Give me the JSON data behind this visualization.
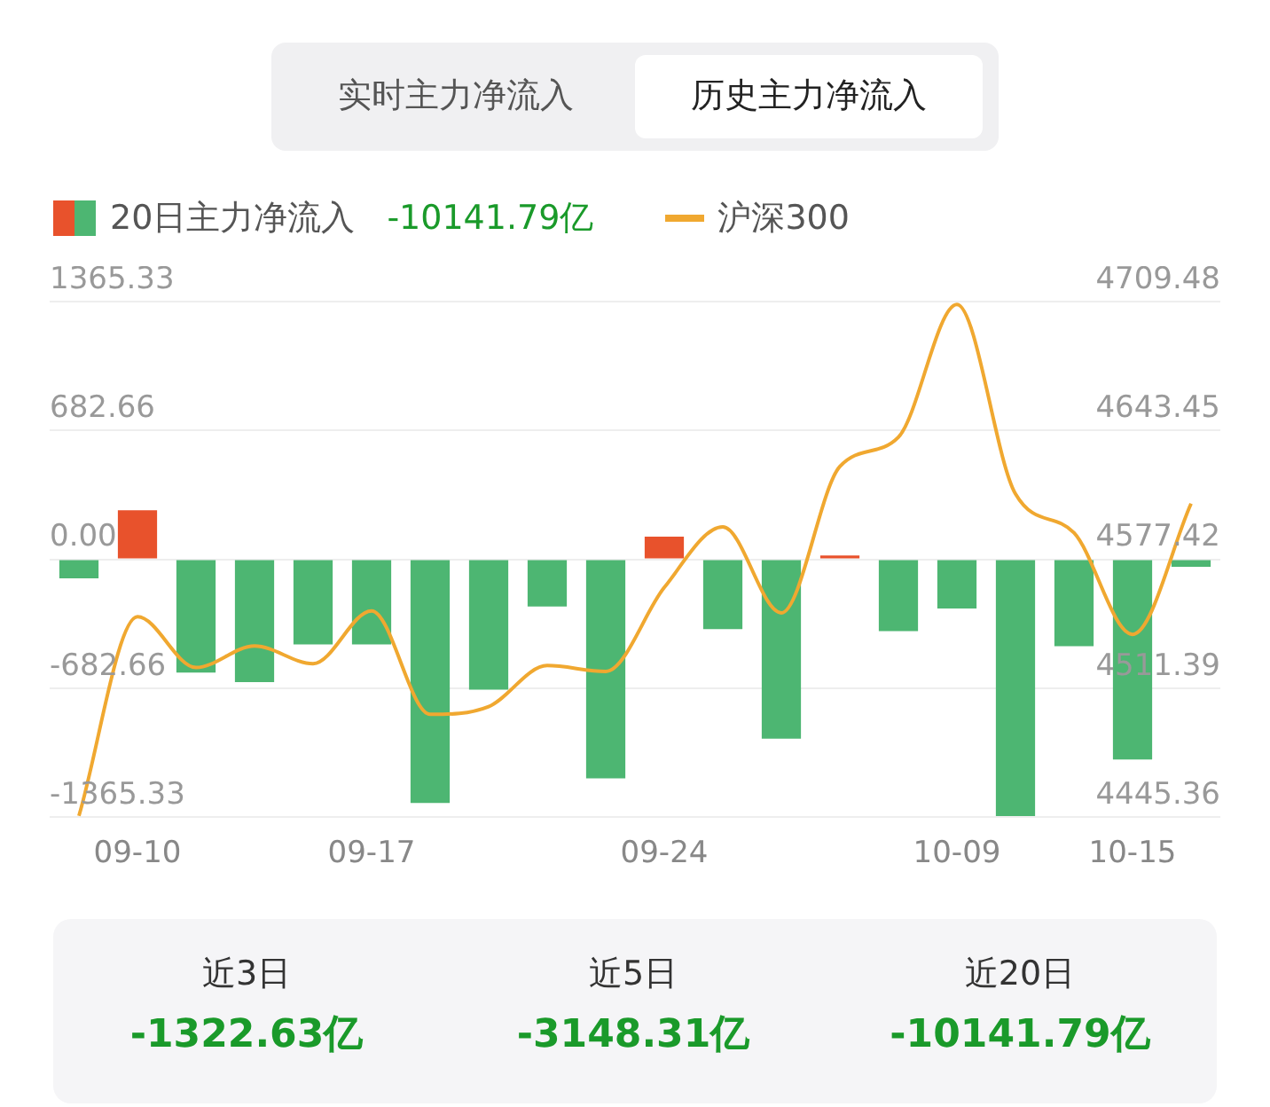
{
  "chart_data": {
    "type": "bar",
    "categories": [
      null,
      "09-10",
      null,
      null,
      null,
      "09-17",
      null,
      null,
      null,
      null,
      "09-24",
      null,
      null,
      null,
      null,
      "10-09",
      null,
      null,
      "10-15",
      null
    ],
    "series": [
      {
        "name": "20日主力净流入",
        "colors": [
          "#4db672",
          "#e8522c",
          "#4db672",
          "#4db672",
          "#4db672",
          "#4db672",
          "#4db672",
          "#4db672",
          "#4db672",
          "#4db672",
          "#e8522c",
          "#4db672",
          "#4db672",
          "#e8522c",
          "#4db672",
          "#4db672",
          "#4db672",
          "#4db672",
          "#4db672",
          "#4db672"
        ],
        "values": [
          -100,
          260,
          -600,
          -650,
          -450,
          -450,
          -1290,
          -690,
          -250,
          -1160,
          120,
          -370,
          -950,
          20,
          -380,
          -260,
          -1360,
          -460,
          -1060,
          -40
        ]
      },
      {
        "name": "沪深300",
        "type": "line",
        "axis": "y2",
        "color": "#f0a830",
        "values": [
          4446,
          4548,
          4522,
          4533,
          4524,
          4551,
          4498,
          4502,
          4523,
          4520,
          4563,
          4594,
          4550,
          4625,
          4640,
          4708,
          4611,
          4591,
          4539,
          4606
        ]
      }
    ],
    "ylim": [
      -1365.33,
      1365.33
    ],
    "yticks": [
      -1365.33,
      -682.66,
      {
        "value": 0,
        "label": "0.00"
      },
      682.66,
      1365.33
    ],
    "y2lim": [
      4445.36,
      4709.48
    ],
    "y2ticks": [
      4445.36,
      4511.39,
      4577.42,
      4643.45,
      4709.48
    ],
    "grid": "y",
    "legend": "top left",
    "marker": "none",
    "line_style": "solid",
    "annotations": [
      "实时主力净流入",
      "历史主力净流入",
      "-10141.79亿",
      "近3日",
      "-1322.63亿",
      "近5日",
      "-3148.31亿",
      "近20日",
      "-10141.79亿"
    ]
  }
}
